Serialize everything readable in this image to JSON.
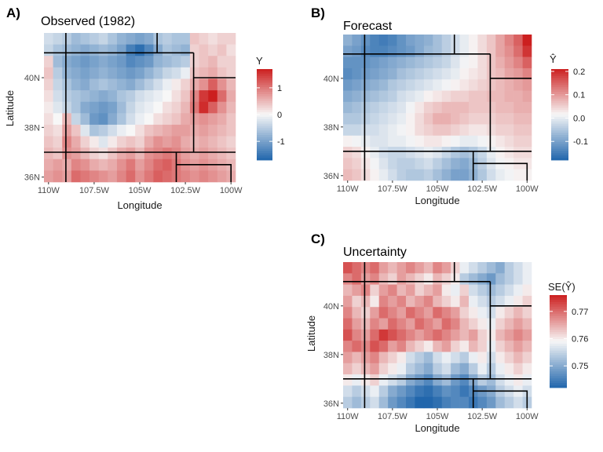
{
  "chart_data": [
    {
      "type": "heatmap",
      "panel_label": "A)",
      "title": "Observed (1982)",
      "xlabel": "Longitude",
      "ylabel": "Latitude",
      "x_ticks": [
        "110W",
        "107.5W",
        "105W",
        "102.5W",
        "100W"
      ],
      "y_ticks": [
        "36N",
        "38N",
        "40N"
      ],
      "x_tick_values": [
        -110,
        -107.5,
        -105,
        -102.5,
        -100
      ],
      "y_tick_values": [
        36,
        38,
        40
      ],
      "xlim": [
        -110.25,
        -99.75
      ],
      "ylim": [
        35.8,
        41.8
      ],
      "legend_title": "Y",
      "legend_ticks": [
        1,
        0,
        -1
      ],
      "legend_range": [
        -1.7,
        1.7
      ],
      "legend_placement": "right",
      "grid": true,
      "colors": {
        "low": "#2166ac",
        "mid": "#f7f7f7",
        "high": "#cc1f1f"
      },
      "cell_size_deg": 0.5,
      "rows_north_to_south": [
        [
          -0.3,
          -0.4,
          -0.5,
          -0.7,
          -0.6,
          -0.5,
          -0.4,
          -0.6,
          -0.8,
          -0.9,
          -1.0,
          -0.9,
          -0.6,
          -0.5,
          -0.6,
          -0.6,
          0.4,
          0.3,
          0.2,
          0.3,
          0.3
        ],
        [
          -0.4,
          -0.6,
          -0.7,
          -0.8,
          -0.9,
          -0.8,
          -0.7,
          -0.8,
          -1.0,
          -1.4,
          -1.6,
          -1.3,
          -0.9,
          -0.6,
          -0.7,
          -0.8,
          0.3,
          0.4,
          0.3,
          0.4,
          0.2
        ],
        [
          0.3,
          -0.7,
          -0.9,
          -1.0,
          -1.1,
          -1.0,
          -0.9,
          -1.0,
          -1.1,
          -1.3,
          -1.2,
          -1.1,
          -0.8,
          -0.7,
          -0.6,
          -0.5,
          0.3,
          0.4,
          0.5,
          0.3,
          0.3
        ],
        [
          0.4,
          -0.5,
          -0.8,
          -0.9,
          -1.0,
          -0.9,
          -0.8,
          -0.9,
          -1.0,
          -1.1,
          -1.0,
          -0.8,
          -0.6,
          -0.4,
          -0.3,
          -0.1,
          0.4,
          0.5,
          0.6,
          0.4,
          0.3
        ],
        [
          0.3,
          -0.4,
          -0.6,
          -0.8,
          -0.9,
          -0.7,
          -0.6,
          -0.7,
          -0.8,
          -0.9,
          -0.7,
          -0.5,
          -0.3,
          -0.1,
          0.1,
          0.3,
          0.6,
          0.8,
          1.2,
          0.8,
          0.5
        ],
        [
          0.2,
          -0.3,
          -0.5,
          -0.6,
          -0.7,
          -0.8,
          -0.9,
          -0.8,
          -0.6,
          -0.5,
          -0.3,
          -0.2,
          -0.1,
          0.0,
          0.2,
          0.4,
          0.9,
          1.5,
          1.8,
          1.1,
          0.6
        ],
        [
          0.1,
          -0.2,
          -0.4,
          -0.6,
          -0.9,
          -1.0,
          -1.1,
          -1.0,
          -0.7,
          -0.4,
          -0.2,
          -0.1,
          0.0,
          0.2,
          0.3,
          0.5,
          1.0,
          1.6,
          1.2,
          0.8,
          0.5
        ],
        [
          0.2,
          0.0,
          0.5,
          -0.4,
          -0.7,
          -1.1,
          -1.2,
          -0.9,
          -0.6,
          -0.3,
          -0.1,
          0.0,
          0.2,
          0.3,
          0.4,
          0.6,
          0.7,
          0.8,
          0.7,
          0.6,
          0.4
        ],
        [
          0.3,
          0.2,
          0.7,
          0.4,
          -0.2,
          -0.6,
          -0.5,
          -0.3,
          -0.1,
          0.0,
          0.2,
          0.4,
          0.5,
          0.6,
          0.7,
          0.7,
          0.6,
          0.7,
          0.6,
          0.5,
          0.4
        ],
        [
          0.4,
          0.3,
          0.9,
          0.6,
          0.3,
          0.1,
          -0.2,
          0.1,
          0.3,
          0.4,
          0.3,
          0.6,
          0.8,
          0.7,
          0.8,
          0.6,
          0.5,
          0.6,
          0.5,
          0.4,
          0.3
        ],
        [
          0.5,
          0.4,
          0.8,
          0.7,
          0.5,
          0.3,
          0.2,
          0.4,
          0.6,
          0.7,
          0.5,
          0.8,
          0.9,
          1.0,
          0.9,
          0.7,
          0.6,
          0.7,
          0.6,
          0.5,
          0.4
        ],
        [
          0.6,
          0.7,
          0.6,
          0.9,
          0.8,
          0.6,
          0.5,
          0.6,
          0.8,
          1.0,
          0.7,
          0.9,
          1.1,
          1.2,
          1.0,
          0.8,
          0.7,
          0.8,
          0.7,
          0.6,
          0.5
        ],
        [
          0.7,
          0.8,
          0.7,
          1.1,
          1.0,
          0.9,
          0.8,
          0.7,
          0.9,
          1.1,
          0.8,
          1.0,
          1.2,
          1.1,
          1.0,
          0.9,
          0.8,
          0.9,
          0.8,
          0.7,
          0.6
        ]
      ]
    },
    {
      "type": "heatmap",
      "panel_label": "B)",
      "title": "Forecast",
      "xlabel": "Longitude",
      "ylabel": "",
      "x_ticks": [
        "110W",
        "107.5W",
        "105W",
        "102.5W",
        "100W"
      ],
      "y_ticks": [
        "36N",
        "38N",
        "40N"
      ],
      "x_tick_values": [
        -110,
        -107.5,
        -105,
        -102.5,
        -100
      ],
      "y_tick_values": [
        36,
        38,
        40
      ],
      "xlim": [
        -110.25,
        -99.75
      ],
      "ylim": [
        35.8,
        41.8
      ],
      "legend_title": "Ŷ",
      "legend_ticks": [
        0.2,
        0.1,
        0.0,
        -0.1
      ],
      "legend_range": [
        -0.18,
        0.21
      ],
      "legend_placement": "right",
      "grid": true,
      "colors": {
        "low": "#2166ac",
        "mid": "#f7f7f7",
        "high": "#cc1f1f"
      },
      "cell_size_deg": 0.5,
      "rows_north_to_south": [
        [
          -0.08,
          -0.1,
          -0.12,
          -0.14,
          -0.15,
          -0.14,
          -0.12,
          -0.1,
          -0.09,
          -0.08,
          -0.06,
          -0.04,
          -0.02,
          0.0,
          0.02,
          0.04,
          0.06,
          0.09,
          0.12,
          0.15,
          0.21
        ],
        [
          -0.1,
          -0.11,
          -0.13,
          -0.14,
          -0.14,
          -0.13,
          -0.12,
          -0.11,
          -0.09,
          -0.07,
          -0.06,
          -0.04,
          -0.02,
          0.0,
          0.02,
          0.04,
          0.06,
          0.09,
          0.11,
          0.14,
          0.19
        ],
        [
          -0.12,
          -0.12,
          -0.12,
          -0.11,
          -0.1,
          -0.09,
          -0.08,
          -0.07,
          -0.06,
          -0.05,
          -0.04,
          -0.03,
          -0.01,
          0.01,
          0.02,
          0.04,
          0.06,
          0.08,
          0.1,
          0.12,
          0.15
        ],
        [
          -0.13,
          -0.12,
          -0.11,
          -0.1,
          -0.09,
          -0.08,
          -0.06,
          -0.05,
          -0.04,
          -0.03,
          -0.02,
          -0.01,
          0.0,
          0.02,
          0.03,
          0.04,
          0.06,
          0.07,
          0.09,
          0.1,
          0.12
        ],
        [
          -0.11,
          -0.1,
          -0.09,
          -0.08,
          -0.07,
          -0.05,
          -0.04,
          -0.03,
          -0.02,
          -0.01,
          0.0,
          0.01,
          0.02,
          0.03,
          0.04,
          0.05,
          0.06,
          0.07,
          0.08,
          0.09,
          0.1
        ],
        [
          -0.09,
          -0.08,
          -0.07,
          -0.06,
          -0.05,
          -0.04,
          -0.02,
          -0.01,
          0.0,
          0.02,
          0.03,
          0.04,
          0.05,
          0.05,
          0.06,
          0.06,
          0.07,
          0.07,
          0.08,
          0.08,
          0.09
        ],
        [
          -0.07,
          -0.06,
          -0.05,
          -0.04,
          -0.03,
          -0.02,
          -0.01,
          0.01,
          0.03,
          0.05,
          0.06,
          0.07,
          0.07,
          0.07,
          0.06,
          0.06,
          0.06,
          0.07,
          0.07,
          0.08,
          0.08
        ],
        [
          -0.05,
          -0.05,
          -0.04,
          -0.03,
          -0.02,
          -0.01,
          0.0,
          0.02,
          0.04,
          0.06,
          0.08,
          0.08,
          0.07,
          0.06,
          0.05,
          0.05,
          0.05,
          0.06,
          0.06,
          0.07,
          0.07
        ],
        [
          -0.03,
          -0.03,
          -0.02,
          -0.02,
          -0.01,
          0.0,
          0.01,
          0.02,
          0.04,
          0.05,
          0.06,
          0.06,
          0.05,
          0.04,
          0.03,
          0.03,
          0.04,
          0.05,
          0.05,
          0.06,
          0.06
        ],
        [
          0.02,
          0.01,
          0.0,
          -0.01,
          -0.01,
          0.0,
          0.0,
          0.01,
          0.02,
          0.03,
          0.03,
          0.02,
          0.01,
          0.0,
          0.0,
          0.01,
          0.02,
          0.03,
          0.04,
          0.05,
          0.05
        ],
        [
          0.05,
          0.04,
          0.02,
          0.0,
          -0.02,
          -0.03,
          -0.03,
          -0.02,
          -0.01,
          0.0,
          -0.01,
          -0.03,
          -0.05,
          -0.06,
          -0.05,
          -0.03,
          0.0,
          0.02,
          0.03,
          0.04,
          0.04
        ],
        [
          0.06,
          0.05,
          0.03,
          0.01,
          -0.01,
          -0.03,
          -0.04,
          -0.04,
          -0.03,
          -0.02,
          -0.04,
          -0.06,
          -0.08,
          -0.09,
          -0.07,
          -0.04,
          -0.01,
          0.01,
          0.02,
          0.03,
          0.03
        ],
        [
          0.07,
          0.06,
          0.04,
          0.02,
          0.0,
          -0.02,
          -0.04,
          -0.05,
          -0.05,
          -0.04,
          -0.06,
          -0.08,
          -0.1,
          -0.1,
          -0.08,
          -0.05,
          -0.02,
          0.0,
          0.01,
          0.02,
          0.02
        ]
      ]
    },
    {
      "type": "heatmap",
      "panel_label": "C)",
      "title": "Uncertainty",
      "xlabel": "Longitude",
      "ylabel": "Latitude",
      "x_ticks": [
        "110W",
        "107.5W",
        "105W",
        "102.5W",
        "100W"
      ],
      "y_ticks": [
        "36N",
        "38N",
        "40N"
      ],
      "x_tick_values": [
        -110,
        -107.5,
        -105,
        -102.5,
        -100
      ],
      "y_tick_values": [
        36,
        38,
        40
      ],
      "xlim": [
        -110.25,
        -99.75
      ],
      "ylim": [
        35.8,
        41.8
      ],
      "legend_title": "SE(Ŷ)",
      "legend_ticks": [
        0.77,
        0.76,
        0.75
      ],
      "legend_range": [
        0.742,
        0.776
      ],
      "legend_placement": "right",
      "grid": true,
      "colors": {
        "low": "#2166ac",
        "mid": "#f7f7f7",
        "high": "#cc1f1f"
      },
      "cell_size_deg": 0.5,
      "rows_north_to_south": [
        [
          0.772,
          0.77,
          0.768,
          0.77,
          0.766,
          0.764,
          0.766,
          0.768,
          0.766,
          0.764,
          0.768,
          0.766,
          0.762,
          0.758,
          0.756,
          0.754,
          0.752,
          0.75,
          0.754,
          0.756,
          0.758
        ],
        [
          0.768,
          0.77,
          0.766,
          0.768,
          0.764,
          0.762,
          0.766,
          0.764,
          0.762,
          0.76,
          0.764,
          0.762,
          0.76,
          0.754,
          0.752,
          0.75,
          0.748,
          0.752,
          0.754,
          0.756,
          0.758
        ],
        [
          0.764,
          0.766,
          0.768,
          0.762,
          0.766,
          0.768,
          0.764,
          0.766,
          0.762,
          0.764,
          0.766,
          0.76,
          0.758,
          0.762,
          0.756,
          0.754,
          0.752,
          0.754,
          0.756,
          0.758,
          0.76
        ],
        [
          0.766,
          0.762,
          0.764,
          0.76,
          0.768,
          0.766,
          0.768,
          0.764,
          0.766,
          0.768,
          0.764,
          0.762,
          0.76,
          0.764,
          0.758,
          0.756,
          0.754,
          0.756,
          0.758,
          0.76,
          0.762
        ],
        [
          0.768,
          0.764,
          0.762,
          0.766,
          0.77,
          0.768,
          0.766,
          0.77,
          0.768,
          0.766,
          0.77,
          0.768,
          0.766,
          0.762,
          0.76,
          0.758,
          0.756,
          0.76,
          0.762,
          0.764,
          0.762
        ],
        [
          0.77,
          0.766,
          0.764,
          0.768,
          0.766,
          0.77,
          0.768,
          0.766,
          0.77,
          0.768,
          0.766,
          0.77,
          0.768,
          0.764,
          0.762,
          0.76,
          0.758,
          0.762,
          0.764,
          0.766,
          0.764
        ],
        [
          0.772,
          0.768,
          0.766,
          0.77,
          0.774,
          0.772,
          0.77,
          0.768,
          0.766,
          0.768,
          0.77,
          0.768,
          0.766,
          0.764,
          0.766,
          0.762,
          0.76,
          0.764,
          0.766,
          0.768,
          0.766
        ],
        [
          0.768,
          0.77,
          0.768,
          0.772,
          0.77,
          0.766,
          0.768,
          0.764,
          0.762,
          0.76,
          0.764,
          0.766,
          0.762,
          0.76,
          0.764,
          0.762,
          0.758,
          0.762,
          0.764,
          0.766,
          0.764
        ],
        [
          0.766,
          0.764,
          0.766,
          0.768,
          0.764,
          0.762,
          0.76,
          0.756,
          0.754,
          0.752,
          0.756,
          0.758,
          0.756,
          0.754,
          0.758,
          0.76,
          0.756,
          0.76,
          0.762,
          0.764,
          0.762
        ],
        [
          0.764,
          0.762,
          0.764,
          0.766,
          0.762,
          0.76,
          0.758,
          0.754,
          0.752,
          0.75,
          0.754,
          0.756,
          0.752,
          0.75,
          0.754,
          0.758,
          0.754,
          0.758,
          0.76,
          0.762,
          0.76
        ],
        [
          0.76,
          0.758,
          0.76,
          0.762,
          0.758,
          0.756,
          0.754,
          0.75,
          0.748,
          0.746,
          0.75,
          0.752,
          0.748,
          0.746,
          0.75,
          0.754,
          0.752,
          0.756,
          0.758,
          0.76,
          0.758
        ],
        [
          0.756,
          0.754,
          0.756,
          0.758,
          0.754,
          0.75,
          0.748,
          0.746,
          0.744,
          0.743,
          0.745,
          0.747,
          0.746,
          0.744,
          0.746,
          0.748,
          0.75,
          0.754,
          0.756,
          0.758,
          0.756
        ],
        [
          0.754,
          0.752,
          0.754,
          0.756,
          0.752,
          0.748,
          0.746,
          0.744,
          0.742,
          0.742,
          0.743,
          0.745,
          0.746,
          0.746,
          0.744,
          0.746,
          0.748,
          0.752,
          0.754,
          0.756,
          0.754
        ]
      ]
    }
  ],
  "state_borders": {
    "segments_lonlat": [
      [
        [
          -110.25,
          41.0
        ],
        [
          -109.05,
          41.0
        ],
        [
          -102.05,
          41.0
        ]
      ],
      [
        [
          -109.05,
          41.8
        ],
        [
          -109.05,
          41.0
        ],
        [
          -109.05,
          37.0
        ],
        [
          -109.05,
          35.8
        ]
      ],
      [
        [
          -104.05,
          41.8
        ],
        [
          -104.05,
          41.0
        ]
      ],
      [
        [
          -102.05,
          41.0
        ],
        [
          -102.05,
          40.0
        ],
        [
          -99.75,
          40.0
        ]
      ],
      [
        [
          -102.05,
          40.0
        ],
        [
          -102.05,
          37.0
        ]
      ],
      [
        [
          -110.25,
          37.0
        ],
        [
          -99.75,
          37.0
        ]
      ],
      [
        [
          -103.0,
          37.0
        ],
        [
          -103.0,
          35.8
        ]
      ],
      [
        [
          -103.0,
          36.5
        ],
        [
          -100.0,
          36.5
        ],
        [
          -100.0,
          35.8
        ]
      ]
    ]
  }
}
